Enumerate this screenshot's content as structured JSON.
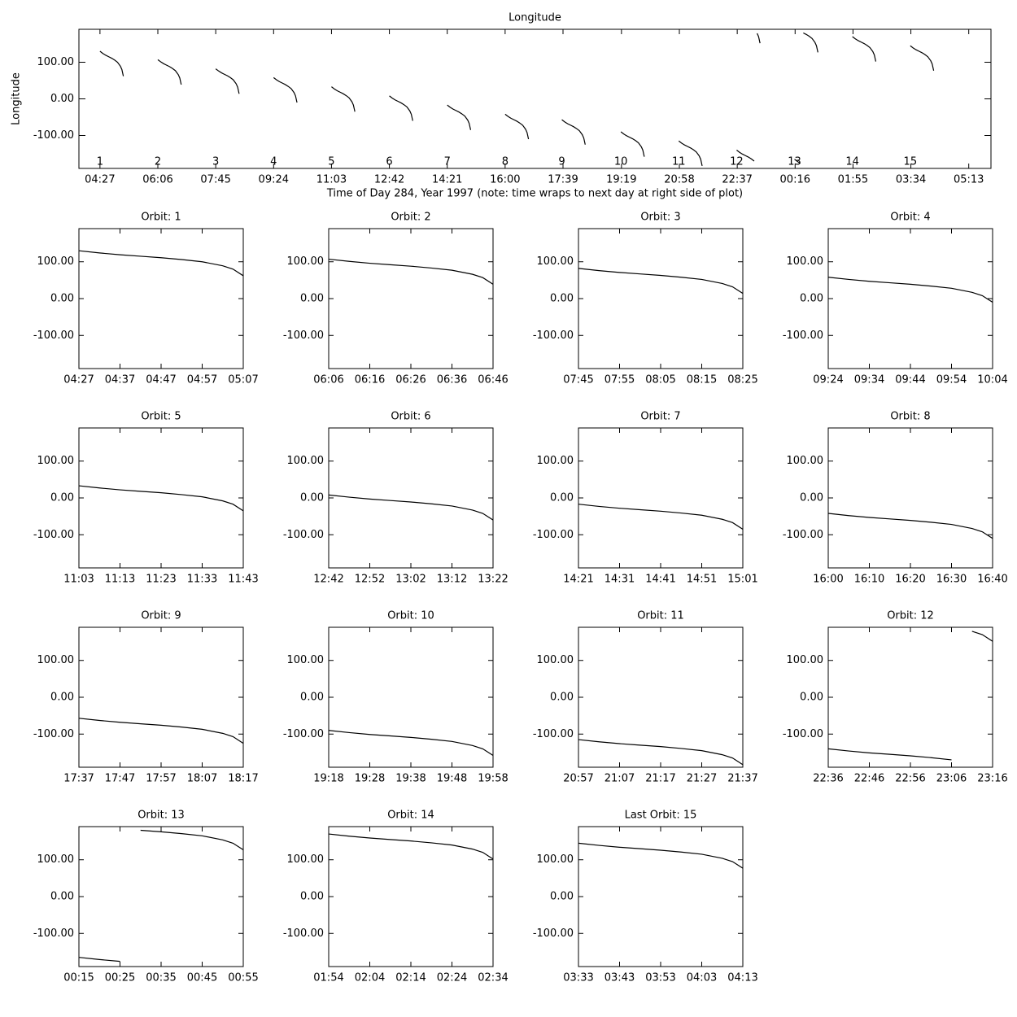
{
  "chart_data": [
    {
      "type": "line",
      "title": "Longitude",
      "y_label": "Longitude",
      "x_label": "Time of Day 284, Year 1997 (note: time wraps to next day at right side of plot)",
      "orbit_labels": [
        "1",
        "2",
        "3",
        "4",
        "5",
        "6",
        "7",
        "8",
        "9",
        "10",
        "11",
        "12",
        "13",
        "14",
        "15"
      ],
      "xlim": [
        231,
        1791
      ],
      "ylim": [
        -190,
        190
      ],
      "xticks": [
        {
          "value": 267,
          "label": "04:27"
        },
        {
          "value": 366,
          "label": "06:06"
        },
        {
          "value": 465,
          "label": "07:45"
        },
        {
          "value": 564,
          "label": "09:24"
        },
        {
          "value": 663,
          "label": "11:03"
        },
        {
          "value": 762,
          "label": "12:42"
        },
        {
          "value": 861,
          "label": "14:21"
        },
        {
          "value": 960,
          "label": "16:00"
        },
        {
          "value": 1059,
          "label": "17:39"
        },
        {
          "value": 1159,
          "label": "19:19"
        },
        {
          "value": 1258,
          "label": "20:58"
        },
        {
          "value": 1357,
          "label": "22:37"
        },
        {
          "value": 1456,
          "label": "00:16"
        },
        {
          "value": 1555,
          "label": "01:55"
        },
        {
          "value": 1654,
          "label": "03:34"
        },
        {
          "value": 1753,
          "label": "05:13"
        }
      ],
      "yticks": [
        {
          "value": 100,
          "label": "100.00"
        },
        {
          "value": 0,
          "label": "0.00"
        },
        {
          "value": -100,
          "label": "-100.00"
        }
      ]
    },
    {
      "type": "line",
      "title": "Orbit: 1",
      "x": [
        267,
        272,
        277,
        282,
        287,
        292,
        297,
        302,
        304.5,
        307
      ],
      "values": [
        130,
        124,
        119,
        115,
        111,
        106,
        100,
        89,
        80,
        62
      ],
      "xlim": [
        267,
        307
      ],
      "ylim": [
        -190,
        190
      ],
      "xticks": [
        {
          "value": 267,
          "label": "04:27"
        },
        {
          "value": 277,
          "label": "04:37"
        },
        {
          "value": 287,
          "label": "04:47"
        },
        {
          "value": 297,
          "label": "04:57"
        },
        {
          "value": 307,
          "label": "05:07"
        }
      ],
      "yticks": [
        {
          "value": 100,
          "label": "100.00"
        },
        {
          "value": 0,
          "label": "0.00"
        },
        {
          "value": -100,
          "label": "-100.00"
        }
      ]
    },
    {
      "type": "line",
      "title": "Orbit: 2",
      "x": [
        366,
        371,
        376,
        381,
        386,
        391,
        396,
        401,
        403.5,
        406
      ],
      "values": [
        107,
        101,
        96,
        92,
        88,
        83,
        77,
        66,
        57,
        39
      ],
      "xlim": [
        366,
        406
      ],
      "ylim": [
        -190,
        190
      ],
      "xticks": [
        {
          "value": 366,
          "label": "06:06"
        },
        {
          "value": 376,
          "label": "06:16"
        },
        {
          "value": 386,
          "label": "06:26"
        },
        {
          "value": 396,
          "label": "06:36"
        },
        {
          "value": 406,
          "label": "06:46"
        }
      ],
      "yticks": [
        {
          "value": 100,
          "label": "100.00"
        },
        {
          "value": 0,
          "label": "0.00"
        },
        {
          "value": -100,
          "label": "-100.00"
        }
      ]
    },
    {
      "type": "line",
      "title": "Orbit: 3",
      "x": [
        465,
        470,
        475,
        480,
        485,
        490,
        495,
        500,
        502.5,
        505
      ],
      "values": [
        82,
        76,
        71,
        67,
        63,
        58,
        52,
        41,
        32,
        14
      ],
      "xlim": [
        465,
        505
      ],
      "ylim": [
        -190,
        190
      ],
      "xticks": [
        {
          "value": 465,
          "label": "07:45"
        },
        {
          "value": 475,
          "label": "07:55"
        },
        {
          "value": 485,
          "label": "08:05"
        },
        {
          "value": 495,
          "label": "08:15"
        },
        {
          "value": 505,
          "label": "08:25"
        }
      ],
      "yticks": [
        {
          "value": 100,
          "label": "100.00"
        },
        {
          "value": 0,
          "label": "0.00"
        },
        {
          "value": -100,
          "label": "-100.00"
        }
      ]
    },
    {
      "type": "line",
      "title": "Orbit: 4",
      "x": [
        564,
        569,
        574,
        579,
        584,
        589,
        594,
        599,
        601.5,
        604
      ],
      "values": [
        58,
        52,
        47,
        43,
        39,
        34,
        28,
        17,
        8,
        -10
      ],
      "xlim": [
        564,
        604
      ],
      "ylim": [
        -190,
        190
      ],
      "xticks": [
        {
          "value": 564,
          "label": "09:24"
        },
        {
          "value": 574,
          "label": "09:34"
        },
        {
          "value": 584,
          "label": "09:44"
        },
        {
          "value": 594,
          "label": "09:54"
        },
        {
          "value": 604,
          "label": "10:04"
        }
      ],
      "yticks": [
        {
          "value": 100,
          "label": "100.00"
        },
        {
          "value": 0,
          "label": "0.00"
        },
        {
          "value": -100,
          "label": "-100.00"
        }
      ]
    },
    {
      "type": "line",
      "title": "Orbit: 5",
      "x": [
        663,
        668,
        673,
        678,
        683,
        688,
        693,
        698,
        700.5,
        703
      ],
      "values": [
        33,
        27,
        22,
        18,
        14,
        9,
        3,
        -8,
        -17,
        -35
      ],
      "xlim": [
        663,
        703
      ],
      "ylim": [
        -190,
        190
      ],
      "xticks": [
        {
          "value": 663,
          "label": "11:03"
        },
        {
          "value": 673,
          "label": "11:13"
        },
        {
          "value": 683,
          "label": "11:23"
        },
        {
          "value": 693,
          "label": "11:33"
        },
        {
          "value": 703,
          "label": "11:43"
        }
      ],
      "yticks": [
        {
          "value": 100,
          "label": "100.00"
        },
        {
          "value": 0,
          "label": "0.00"
        },
        {
          "value": -100,
          "label": "-100.00"
        }
      ]
    },
    {
      "type": "line",
      "title": "Orbit: 6",
      "x": [
        762,
        767,
        772,
        777,
        782,
        787,
        792,
        797,
        799.5,
        802
      ],
      "values": [
        8,
        2,
        -3,
        -7,
        -11,
        -16,
        -22,
        -33,
        -42,
        -60
      ],
      "xlim": [
        762,
        802
      ],
      "ylim": [
        -190,
        190
      ],
      "xticks": [
        {
          "value": 762,
          "label": "12:42"
        },
        {
          "value": 772,
          "label": "12:52"
        },
        {
          "value": 782,
          "label": "13:02"
        },
        {
          "value": 792,
          "label": "13:12"
        },
        {
          "value": 802,
          "label": "13:22"
        }
      ],
      "yticks": [
        {
          "value": 100,
          "label": "100.00"
        },
        {
          "value": 0,
          "label": "0.00"
        },
        {
          "value": -100,
          "label": "-100.00"
        }
      ]
    },
    {
      "type": "line",
      "title": "Orbit: 7",
      "x": [
        861,
        866,
        871,
        876,
        881,
        886,
        891,
        896,
        898.5,
        901
      ],
      "values": [
        -17,
        -23,
        -28,
        -32,
        -36,
        -41,
        -47,
        -58,
        -67,
        -85
      ],
      "xlim": [
        861,
        901
      ],
      "ylim": [
        -190,
        190
      ],
      "xticks": [
        {
          "value": 861,
          "label": "14:21"
        },
        {
          "value": 871,
          "label": "14:31"
        },
        {
          "value": 881,
          "label": "14:41"
        },
        {
          "value": 891,
          "label": "14:51"
        },
        {
          "value": 901,
          "label": "15:01"
        }
      ],
      "yticks": [
        {
          "value": 100,
          "label": "100.00"
        },
        {
          "value": 0,
          "label": "0.00"
        },
        {
          "value": -100,
          "label": "-100.00"
        }
      ]
    },
    {
      "type": "line",
      "title": "Orbit: 8",
      "x": [
        960,
        965,
        970,
        975,
        980,
        985,
        990,
        995,
        997.5,
        1000
      ],
      "values": [
        -42,
        -48,
        -53,
        -57,
        -61,
        -66,
        -72,
        -83,
        -92,
        -110
      ],
      "xlim": [
        960,
        1000
      ],
      "ylim": [
        -190,
        190
      ],
      "xticks": [
        {
          "value": 960,
          "label": "16:00"
        },
        {
          "value": 970,
          "label": "16:10"
        },
        {
          "value": 980,
          "label": "16:20"
        },
        {
          "value": 990,
          "label": "16:30"
        },
        {
          "value": 1000,
          "label": "16:40"
        }
      ],
      "yticks": [
        {
          "value": 100,
          "label": "100.00"
        },
        {
          "value": 0,
          "label": "0.00"
        },
        {
          "value": -100,
          "label": "-100.00"
        }
      ]
    },
    {
      "type": "line",
      "title": "Orbit: 9",
      "x": [
        1057,
        1062,
        1067,
        1072,
        1077,
        1082,
        1087,
        1092,
        1094.5,
        1097
      ],
      "values": [
        -57,
        -63,
        -68,
        -72,
        -76,
        -81,
        -87,
        -98,
        -107,
        -125
      ],
      "xlim": [
        1057,
        1097
      ],
      "ylim": [
        -190,
        190
      ],
      "xticks": [
        {
          "value": 1057,
          "label": "17:37"
        },
        {
          "value": 1067,
          "label": "17:47"
        },
        {
          "value": 1077,
          "label": "17:57"
        },
        {
          "value": 1087,
          "label": "18:07"
        },
        {
          "value": 1097,
          "label": "18:17"
        }
      ],
      "yticks": [
        {
          "value": 100,
          "label": "100.00"
        },
        {
          "value": 0,
          "label": "0.00"
        },
        {
          "value": -100,
          "label": "-100.00"
        }
      ]
    },
    {
      "type": "line",
      "title": "Orbit: 10",
      "x": [
        1158,
        1163,
        1168,
        1173,
        1178,
        1183,
        1188,
        1193,
        1195.5,
        1198
      ],
      "values": [
        -90,
        -96,
        -101,
        -105,
        -109,
        -114,
        -120,
        -131,
        -140,
        -158
      ],
      "xlim": [
        1158,
        1198
      ],
      "ylim": [
        -190,
        190
      ],
      "xticks": [
        {
          "value": 1158,
          "label": "19:18"
        },
        {
          "value": 1168,
          "label": "19:28"
        },
        {
          "value": 1178,
          "label": "19:38"
        },
        {
          "value": 1188,
          "label": "19:48"
        },
        {
          "value": 1198,
          "label": "19:58"
        }
      ],
      "yticks": [
        {
          "value": 100,
          "label": "100.00"
        },
        {
          "value": 0,
          "label": "0.00"
        },
        {
          "value": -100,
          "label": "-100.00"
        }
      ]
    },
    {
      "type": "line",
      "title": "Orbit: 11",
      "x": [
        1257,
        1262,
        1267,
        1272,
        1277,
        1282,
        1287,
        1292,
        1294.5,
        1297
      ],
      "values": [
        -115,
        -121,
        -126,
        -130,
        -134,
        -139,
        -145,
        -156,
        -165,
        -183
      ],
      "xlim": [
        1257,
        1297
      ],
      "ylim": [
        -190,
        190
      ],
      "xticks": [
        {
          "value": 1257,
          "label": "20:57"
        },
        {
          "value": 1267,
          "label": "21:07"
        },
        {
          "value": 1277,
          "label": "21:17"
        },
        {
          "value": 1287,
          "label": "21:27"
        },
        {
          "value": 1297,
          "label": "21:37"
        }
      ],
      "yticks": [
        {
          "value": 100,
          "label": "100.00"
        },
        {
          "value": 0,
          "label": "0.00"
        },
        {
          "value": -100,
          "label": "-100.00"
        }
      ]
    },
    {
      "type": "line",
      "title": "Orbit: 12",
      "x": [
        1356,
        1361,
        1366,
        1371,
        1376,
        1381,
        1386,
        1388.5,
        1391,
        1393.5,
        1396
      ],
      "values": [
        -140,
        -146,
        -151,
        -155,
        -159,
        -164,
        -170,
        null,
        179,
        170,
        152
      ],
      "xlim": [
        1356,
        1396
      ],
      "ylim": [
        -190,
        190
      ],
      "xticks": [
        {
          "value": 1356,
          "label": "22:36"
        },
        {
          "value": 1366,
          "label": "22:46"
        },
        {
          "value": 1376,
          "label": "22:56"
        },
        {
          "value": 1386,
          "label": "23:06"
        },
        {
          "value": 1396,
          "label": "23:16"
        }
      ],
      "yticks": [
        {
          "value": 100,
          "label": "100.00"
        },
        {
          "value": 0,
          "label": "0.00"
        },
        {
          "value": -100,
          "label": "-100.00"
        }
      ]
    },
    {
      "type": "line",
      "title": "Orbit: 13",
      "x": [
        1455,
        1460,
        1465,
        1467.5,
        1470,
        1475,
        1480,
        1485,
        1490,
        1492.5,
        1495
      ],
      "values": [
        -165,
        -171,
        -176,
        null,
        180,
        176,
        171,
        165,
        154,
        145,
        127
      ],
      "xlim": [
        1455,
        1495
      ],
      "ylim": [
        -190,
        190
      ],
      "xticks": [
        {
          "value": 1455,
          "label": "00:15"
        },
        {
          "value": 1465,
          "label": "00:25"
        },
        {
          "value": 1475,
          "label": "00:35"
        },
        {
          "value": 1485,
          "label": "00:45"
        },
        {
          "value": 1495,
          "label": "00:55"
        }
      ],
      "yticks": [
        {
          "value": 100,
          "label": "100.00"
        },
        {
          "value": 0,
          "label": "0.00"
        },
        {
          "value": -100,
          "label": "-100.00"
        }
      ]
    },
    {
      "type": "line",
      "title": "Orbit: 14",
      "x": [
        1554,
        1559,
        1564,
        1569,
        1574,
        1579,
        1584,
        1589,
        1591.5,
        1594
      ],
      "values": [
        170,
        164,
        159,
        155,
        151,
        146,
        140,
        129,
        120,
        102
      ],
      "xlim": [
        1554,
        1594
      ],
      "ylim": [
        -190,
        190
      ],
      "xticks": [
        {
          "value": 1554,
          "label": "01:54"
        },
        {
          "value": 1564,
          "label": "02:04"
        },
        {
          "value": 1574,
          "label": "02:14"
        },
        {
          "value": 1584,
          "label": "02:24"
        },
        {
          "value": 1594,
          "label": "02:34"
        }
      ],
      "yticks": [
        {
          "value": 100,
          "label": "100.00"
        },
        {
          "value": 0,
          "label": "0.00"
        },
        {
          "value": -100,
          "label": "-100.00"
        }
      ]
    },
    {
      "type": "line",
      "title": "Last Orbit: 15",
      "x": [
        1653,
        1658,
        1663,
        1668,
        1673,
        1678,
        1683,
        1688,
        1690.5,
        1693
      ],
      "values": [
        145,
        139,
        134,
        130,
        126,
        121,
        115,
        104,
        95,
        77
      ],
      "xlim": [
        1653,
        1693
      ],
      "ylim": [
        -190,
        190
      ],
      "xticks": [
        {
          "value": 1653,
          "label": "03:33"
        },
        {
          "value": 1663,
          "label": "03:43"
        },
        {
          "value": 1673,
          "label": "03:53"
        },
        {
          "value": 1683,
          "label": "04:03"
        },
        {
          "value": 1693,
          "label": "04:13"
        }
      ],
      "yticks": [
        {
          "value": 100,
          "label": "100.00"
        },
        {
          "value": 0,
          "label": "0.00"
        },
        {
          "value": -100,
          "label": "-100.00"
        }
      ]
    }
  ]
}
